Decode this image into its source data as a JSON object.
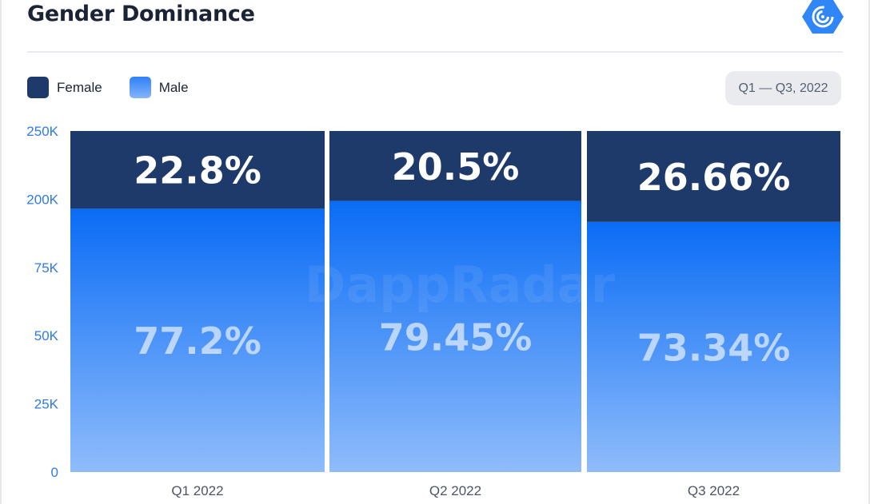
{
  "header": {
    "title": "Gender Dominance",
    "logo_icon": "dappradar-logo-icon",
    "date_range": "Q1 — Q3, 2022"
  },
  "legend": [
    {
      "label": "Female",
      "color": "#1e3a6b"
    },
    {
      "label": "Male",
      "color": "#3d8eff"
    }
  ],
  "watermark": "DappRadar",
  "chart_data": {
    "type": "bar",
    "stacked": true,
    "categories": [
      "Q1 2022",
      "Q2 2022",
      "Q3 2022"
    ],
    "y_ticks": [
      "0",
      "25K",
      "50K",
      "75K",
      "200K",
      "250K"
    ],
    "series": [
      {
        "name": "Male",
        "values": [
          77.2,
          79.45,
          73.34
        ],
        "labels": [
          "77.2%",
          "79.45%",
          "73.34%"
        ],
        "color": "#3d8eff"
      },
      {
        "name": "Female",
        "values": [
          22.8,
          20.5,
          26.66
        ],
        "labels": [
          "22.8%",
          "20.5%",
          "26.66%"
        ],
        "color": "#1e3a6b"
      }
    ],
    "grid": false,
    "legend_position": "top-left"
  }
}
